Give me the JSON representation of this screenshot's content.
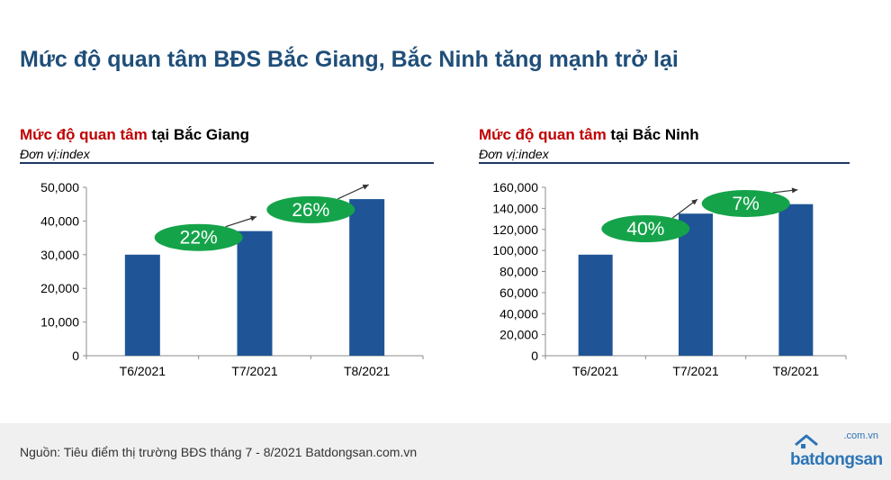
{
  "page": {
    "title": "Mức độ quan tâm BĐS Bắc Giang, Bắc Ninh tăng mạnh trở lại",
    "source": "Nguồn: Tiêu điểm thị trường BĐS tháng 7 - 8/2021 Batdongsan.com.vn",
    "logo_text": "batdongsan",
    "logo_domain": ".com.vn"
  },
  "colors": {
    "bar": "#1f5596",
    "badge": "#15a34a",
    "title": "#1f4e79",
    "highlight": "#c00000"
  },
  "chart_data": [
    {
      "type": "bar",
      "title_highlight": "Mức độ quan tâm",
      "title_rest": " tại Bắc Giang",
      "unit": "Đơn vị:index",
      "categories": [
        "T6/2021",
        "T7/2021",
        "T8/2021"
      ],
      "values": [
        30000,
        37000,
        46500
      ],
      "ylim": [
        0,
        50000
      ],
      "yticks": [
        0,
        10000,
        20000,
        30000,
        40000,
        50000
      ],
      "ytick_labels": [
        "0",
        "10,000",
        "20,000",
        "30,000",
        "40,000",
        "50,000"
      ],
      "grid": false,
      "growth": [
        {
          "label": "22%",
          "from": 0,
          "to": 1
        },
        {
          "label": "26%",
          "from": 1,
          "to": 2
        }
      ]
    },
    {
      "type": "bar",
      "title_highlight": "Mức độ quan tâm",
      "title_rest": " tại Bắc Ninh",
      "unit": "Đơn vị:index",
      "categories": [
        "T6/2021",
        "T7/2021",
        "T8/2021"
      ],
      "values": [
        96000,
        135000,
        144000
      ],
      "ylim": [
        0,
        160000
      ],
      "yticks": [
        0,
        20000,
        40000,
        60000,
        80000,
        100000,
        120000,
        140000,
        160000
      ],
      "ytick_labels": [
        "0",
        "20,000",
        "40,000",
        "60,000",
        "80,000",
        "100,000",
        "120,000",
        "140,000",
        "160,000"
      ],
      "grid": false,
      "growth": [
        {
          "label": "40%",
          "from": 0,
          "to": 1
        },
        {
          "label": "7%",
          "from": 1,
          "to": 2
        }
      ]
    }
  ]
}
